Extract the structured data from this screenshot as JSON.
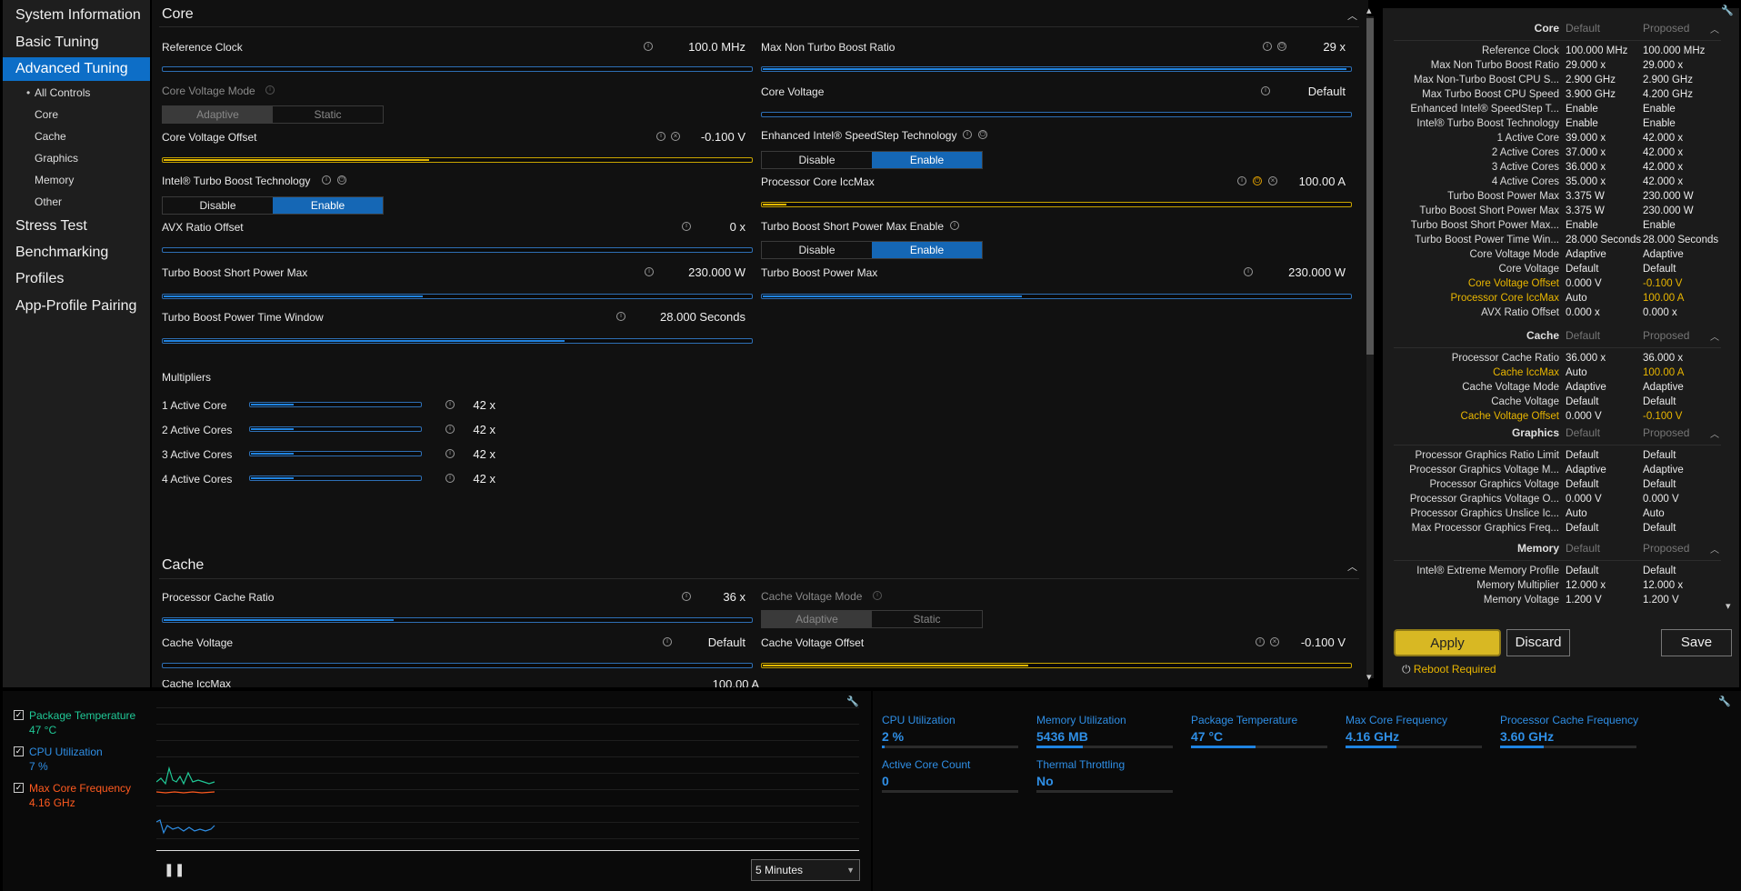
{
  "nav": {
    "items": [
      {
        "label": "System Information"
      },
      {
        "label": "Basic Tuning"
      },
      {
        "label": "Advanced Tuning"
      },
      {
        "label": "Stress Test"
      },
      {
        "label": "Benchmarking"
      },
      {
        "label": "Profiles"
      },
      {
        "label": "App-Profile Pairing"
      }
    ],
    "subitems": [
      "All Controls",
      "Core",
      "Cache",
      "Graphics",
      "Memory",
      "Other"
    ]
  },
  "core": {
    "title": "Core",
    "reference_clock": {
      "label": "Reference Clock",
      "value": "100.0 MHz"
    },
    "max_non_turbo": {
      "label": "Max Non Turbo Boost Ratio",
      "value": "29 x"
    },
    "core_voltage_mode": {
      "label": "Core Voltage Mode",
      "options": [
        "Adaptive",
        "Static"
      ]
    },
    "core_voltage": {
      "label": "Core Voltage",
      "value": "Default"
    },
    "core_voltage_offset": {
      "label": "Core Voltage Offset",
      "value": "-0.100 V"
    },
    "speedstep": {
      "label": "Enhanced Intel® SpeedStep Technology",
      "options": [
        "Disable",
        "Enable"
      ]
    },
    "turbo_boost_tech": {
      "label": "Intel® Turbo Boost Technology",
      "options": [
        "Disable",
        "Enable"
      ]
    },
    "iccmax": {
      "label": "Processor Core IccMax",
      "value": "100.00 A"
    },
    "avx": {
      "label": "AVX Ratio Offset",
      "value": "0 x"
    },
    "short_power_max_enable": {
      "label": "Turbo Boost Short Power Max Enable",
      "options": [
        "Disable",
        "Enable"
      ]
    },
    "short_power_max": {
      "label": "Turbo Boost Short Power Max",
      "value": "230.000 W"
    },
    "power_max": {
      "label": "Turbo Boost Power Max",
      "value": "230.000 W"
    },
    "time_window": {
      "label": "Turbo Boost Power Time Window",
      "value": "28.000 Seconds"
    },
    "multipliers_title": "Multipliers",
    "multipliers": [
      {
        "label": "1 Active Core",
        "value": "42 x"
      },
      {
        "label": "2 Active Cores",
        "value": "42 x"
      },
      {
        "label": "3 Active Cores",
        "value": "42 x"
      },
      {
        "label": "4 Active Cores",
        "value": "42 x"
      }
    ]
  },
  "cache": {
    "title": "Cache",
    "ratio": {
      "label": "Processor Cache Ratio",
      "value": "36 x"
    },
    "voltage_mode": {
      "label": "Cache Voltage Mode",
      "options": [
        "Adaptive",
        "Static"
      ]
    },
    "voltage": {
      "label": "Cache Voltage",
      "value": "Default"
    },
    "voltage_offset": {
      "label": "Cache Voltage Offset",
      "value": "-0.100 V"
    },
    "partial_label": "Cache IccMax",
    "partial_value": "100.00 A"
  },
  "summary": {
    "col_default": "Default",
    "col_proposed": "Proposed",
    "sections": [
      {
        "title": "Core",
        "rows": [
          [
            "Reference Clock",
            "100.000 MHz",
            "100.000 MHz",
            false
          ],
          [
            "Max Non Turbo Boost Ratio",
            "29.000 x",
            "29.000 x",
            false
          ],
          [
            "Max Non-Turbo Boost CPU S...",
            "2.900 GHz",
            "2.900 GHz",
            false
          ],
          [
            "Max Turbo Boost CPU Speed",
            "3.900 GHz",
            "4.200 GHz",
            false
          ],
          [
            "Enhanced Intel® SpeedStep T...",
            "Enable",
            "Enable",
            false
          ],
          [
            "Intel® Turbo Boost Technology",
            "Enable",
            "Enable",
            false
          ],
          [
            "1 Active Core",
            "39.000 x",
            "42.000 x",
            false
          ],
          [
            "2 Active Cores",
            "37.000 x",
            "42.000 x",
            false
          ],
          [
            "3 Active Cores",
            "36.000 x",
            "42.000 x",
            false
          ],
          [
            "4 Active Cores",
            "35.000 x",
            "42.000 x",
            false
          ],
          [
            "Turbo Boost Power Max",
            "3.375 W",
            "230.000 W",
            false
          ],
          [
            "Turbo Boost Short Power Max",
            "3.375 W",
            "230.000 W",
            false
          ],
          [
            "Turbo Boost Short Power Max...",
            "Enable",
            "Enable",
            false
          ],
          [
            "Turbo Boost Power Time Win...",
            "28.000 Seconds",
            "28.000 Seconds",
            false
          ],
          [
            "Core Voltage Mode",
            "Adaptive",
            "Adaptive",
            false
          ],
          [
            "Core Voltage",
            "Default",
            "Default",
            false
          ],
          [
            "Core Voltage Offset",
            "0.000 V",
            "-0.100 V",
            true
          ],
          [
            "Processor Core IccMax",
            "Auto",
            "100.00 A",
            true
          ],
          [
            "AVX Ratio Offset",
            "0.000 x",
            "0.000 x",
            false
          ]
        ]
      },
      {
        "title": "Cache",
        "rows": [
          [
            "Processor Cache Ratio",
            "36.000 x",
            "36.000 x",
            false
          ],
          [
            "Cache IccMax",
            "Auto",
            "100.00 A",
            true
          ],
          [
            "Cache Voltage Mode",
            "Adaptive",
            "Adaptive",
            false
          ],
          [
            "Cache Voltage",
            "Default",
            "Default",
            false
          ],
          [
            "Cache Voltage Offset",
            "0.000 V",
            "-0.100 V",
            true
          ]
        ]
      },
      {
        "title": "Graphics",
        "rows": [
          [
            "Processor Graphics Ratio Limit",
            "Default",
            "Default",
            false
          ],
          [
            "Processor Graphics Voltage M...",
            "Adaptive",
            "Adaptive",
            false
          ],
          [
            "Processor Graphics Voltage",
            "Default",
            "Default",
            false
          ],
          [
            "Processor Graphics Voltage O...",
            "0.000 V",
            "0.000 V",
            false
          ],
          [
            "Processor Graphics Unslice Ic...",
            "Auto",
            "Auto",
            false
          ],
          [
            "Max Processor Graphics Freq...",
            "Default",
            "Default",
            false
          ]
        ]
      },
      {
        "title": "Memory",
        "rows": [
          [
            "Intel® Extreme Memory Profile",
            "Default",
            "Default",
            false
          ],
          [
            "Memory Multiplier",
            "12.000 x",
            "12.000 x",
            false
          ],
          [
            "Memory Voltage",
            "1.200 V",
            "1.200 V",
            false
          ]
        ]
      }
    ]
  },
  "actions": {
    "apply": "Apply",
    "discard": "Discard",
    "save": "Save",
    "reboot": "Reboot Required"
  },
  "monitor": {
    "items": [
      {
        "label": "Package Temperature",
        "value": "47 °C",
        "color": "#20c997"
      },
      {
        "label": "CPU Utilization",
        "value": "7 %",
        "color": "#2f8fe6"
      },
      {
        "label": "Max Core Frequency",
        "value": "4.16 GHz",
        "color": "#ff5a1f"
      }
    ],
    "duration": "5 Minutes"
  },
  "stats": [
    {
      "label": "CPU Utilization",
      "value": "2 %",
      "level": 0.02
    },
    {
      "label": "Memory Utilization",
      "value": "5436  MB",
      "level": 0.34
    },
    {
      "label": "Package Temperature",
      "value": "47 °C",
      "level": 0.47
    },
    {
      "label": "Max Core Frequency",
      "value": "4.16 GHz",
      "level": 0.37
    },
    {
      "label": "Processor Cache Frequency",
      "value": "3.60 GHz",
      "level": 0.32
    },
    {
      "label": "Active Core Count",
      "value": "0",
      "level": 0
    },
    {
      "label": "Thermal Throttling",
      "value": "No",
      "level": 0
    }
  ]
}
